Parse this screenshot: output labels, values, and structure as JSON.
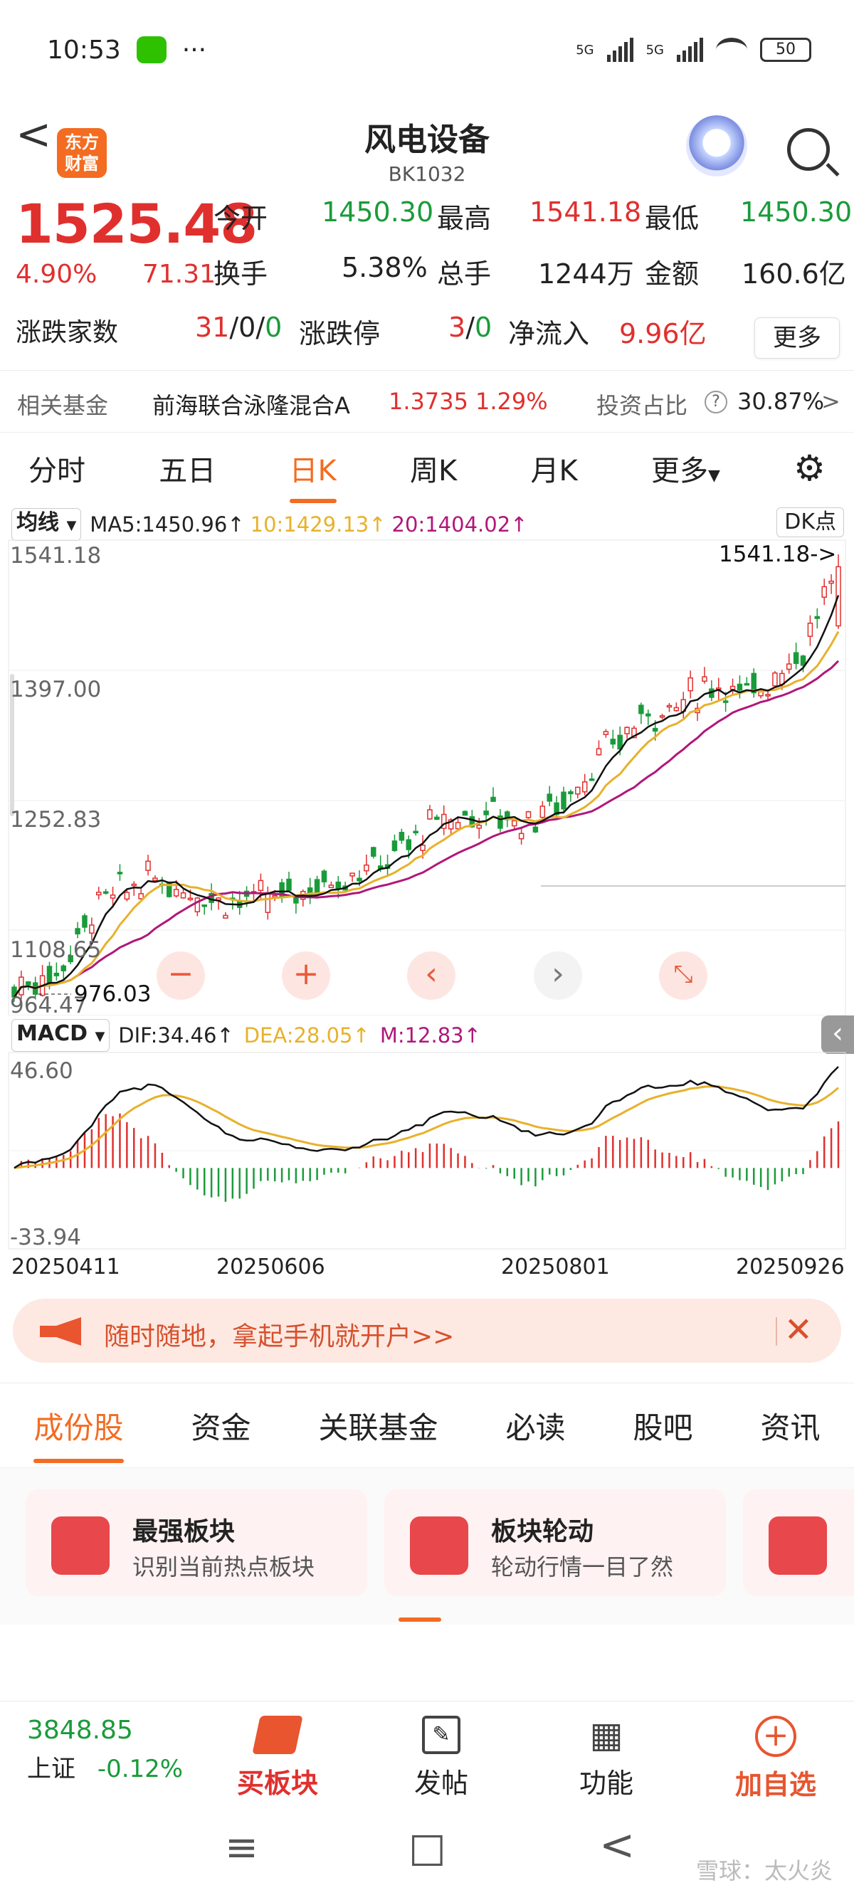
{
  "status_bar": {
    "time": "10:53",
    "more": "···",
    "signal1": "5G",
    "signal2": "5G",
    "battery": "50"
  },
  "header": {
    "back": "<",
    "logo_line1": "东方",
    "logo_line2": "财富",
    "title": "风电设备",
    "code": "BK1032"
  },
  "quote": {
    "price": "1525.48",
    "change_pct": "4.90%",
    "change": "71.31",
    "open_label": "今开",
    "open": "1450.30",
    "high_label": "最高",
    "high": "1541.18",
    "low_label": "最低",
    "low": "1450.30",
    "turnover_label": "换手",
    "turnover": "5.38%",
    "volume_label": "总手",
    "volume": "1244万",
    "amount_label": "金额",
    "amount": "160.6亿",
    "updown_label": "涨跌家数",
    "up": "31",
    "flat": "0",
    "down": "0",
    "sep": "/",
    "limit_label": "涨跌停",
    "limit_up": "3",
    "limit_down": "0",
    "netflow_label": "净流入",
    "netflow": "9.96亿",
    "more_button": "更多"
  },
  "fund": {
    "label": "相关基金",
    "name": "前海联合泳隆混合A",
    "nav": "1.3735",
    "pct": "1.29%",
    "ratio_label": "投资占比",
    "ratio": "30.87%",
    "arrow": ">"
  },
  "period_tabs": [
    "分时",
    "五日",
    "日K",
    "周K",
    "月K",
    "更多"
  ],
  "ma": {
    "selector": "均线",
    "ma5": "MA5:1450.96",
    "ma10": "10:1429.13",
    "ma20": "20:1404.02",
    "arrow": "↑",
    "dk": "DK点"
  },
  "kline_axis": {
    "y1": "1541.18",
    "y2": "1397.00",
    "y3": "1252.83",
    "y4": "1108.65",
    "y5": "964.47",
    "high_note": "1541.18->",
    "low_note": "976.03"
  },
  "macd": {
    "selector": "MACD",
    "dif": "DIF:34.46",
    "dea": "DEA:28.05",
    "m": "M:12.83",
    "arrow": "↑",
    "y_top": "46.60",
    "y_bottom": "-33.94"
  },
  "dates": [
    "20250411",
    "20250606",
    "20250801",
    "20250926"
  ],
  "banner": {
    "text": "随时随地，拿起手机就开户>>",
    "close": "✕"
  },
  "sub_tabs": [
    "成份股",
    "资金",
    "关联基金",
    "必读",
    "股吧",
    "资讯"
  ],
  "cards": [
    {
      "title": "最强板块",
      "desc": "识别当前热点板块"
    },
    {
      "title": "板块轮动",
      "desc": "轮动行情一目了然"
    }
  ],
  "dock": {
    "index_value": "3848.85",
    "index_name": "上证",
    "index_pct": "-0.12%",
    "buy": "买板块",
    "post": "发帖",
    "func": "功能",
    "add": "加自选"
  },
  "nav": {
    "menu": "≡",
    "home": "□",
    "back": "<"
  },
  "watermark": "雪球：太火炎",
  "colors": {
    "up": "#e0302e",
    "down": "#1a9b3a",
    "accent": "#f36c21",
    "ma5": "#111111",
    "ma10": "#e8b12b",
    "ma20": "#b0177a"
  }
}
